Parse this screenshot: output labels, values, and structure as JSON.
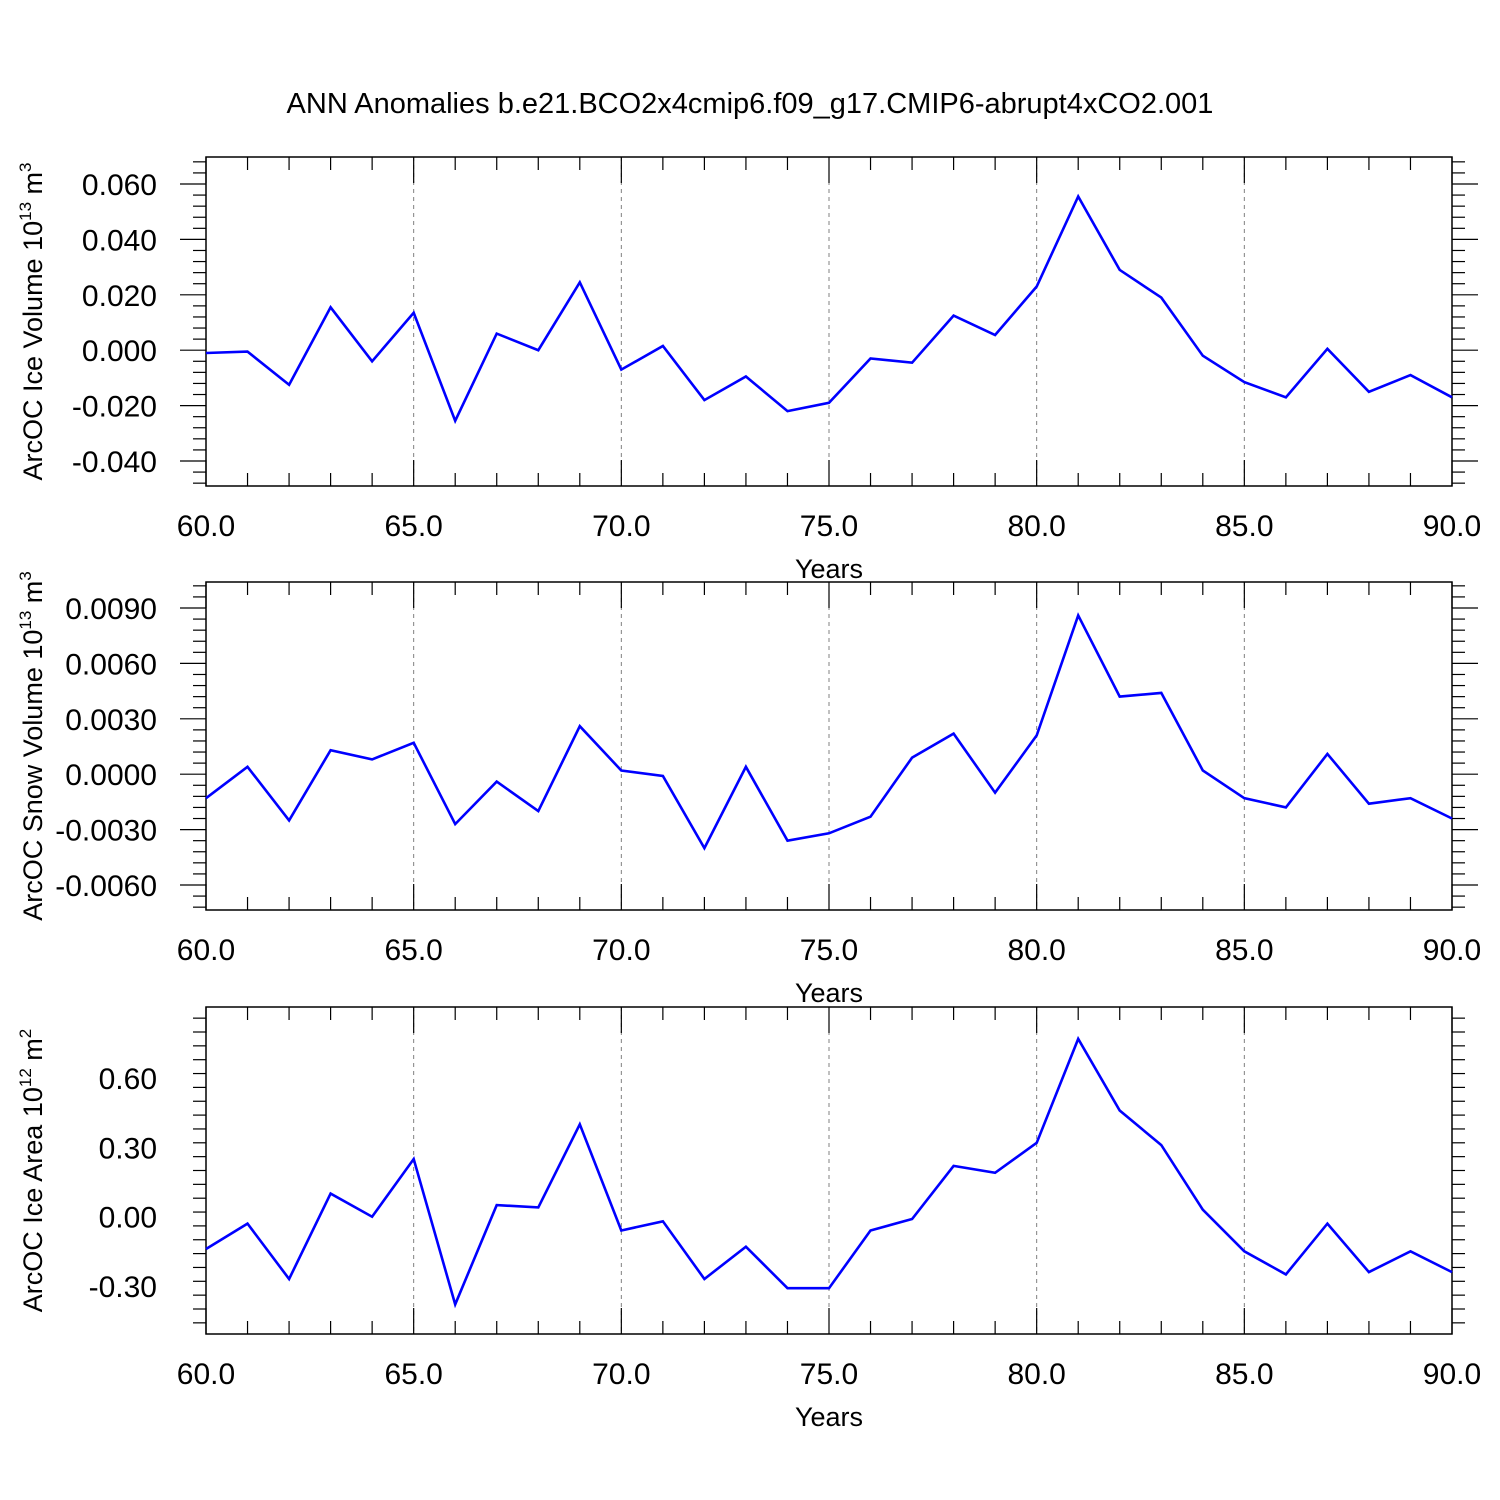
{
  "figure": {
    "title": "ANN Anomalies b.e21.BCO2x4cmip6.f09_g17.CMIP6-abrupt4xCO2.001"
  },
  "colors": {
    "line": "#0000ff",
    "axis": "#000000",
    "grid": "#808080"
  },
  "chart_data": [
    {
      "type": "line",
      "ylabel_main": "ArcOC Ice Volume 10",
      "ylabel_exp": "13",
      "ylabel_unit": "m",
      "ylabel_unit_exp": "3",
      "xlabel": "Years",
      "xlim": [
        60,
        90
      ],
      "ylim": [
        -0.04,
        0.06
      ],
      "y_decimals": 3,
      "x_ticks": [
        60,
        65,
        70,
        75,
        80,
        85,
        90
      ],
      "y_ticks": [
        -0.04,
        -0.02,
        0.0,
        0.02,
        0.04,
        0.06
      ],
      "grid_x": [
        65,
        70,
        75,
        80,
        85
      ],
      "x": [
        60,
        61,
        62,
        63,
        64,
        65,
        66,
        67,
        68,
        69,
        70,
        71,
        72,
        73,
        74,
        75,
        76,
        77,
        78,
        79,
        80,
        81,
        82,
        83,
        84,
        85,
        86,
        87,
        88,
        89,
        90
      ],
      "series": [
        {
          "values": [
            -0.001,
            -0.0005,
            -0.0125,
            0.0155,
            -0.004,
            0.0135,
            -0.0255,
            0.006,
            0.0,
            0.0245,
            -0.007,
            0.0015,
            -0.018,
            -0.0095,
            -0.022,
            -0.019,
            -0.003,
            -0.0045,
            0.0125,
            0.0055,
            0.023,
            0.0555,
            0.029,
            0.019,
            -0.002,
            -0.0115,
            -0.017,
            0.0005,
            -0.015,
            -0.009,
            -0.017
          ]
        }
      ]
    },
    {
      "type": "line",
      "ylabel_main": "ArcOC Snow Volume 10",
      "ylabel_exp": "13",
      "ylabel_unit": "m",
      "ylabel_unit_exp": "3",
      "xlabel": "Years",
      "xlim": [
        60,
        90
      ],
      "ylim": [
        -0.006,
        0.009
      ],
      "y_decimals": 4,
      "x_ticks": [
        60,
        65,
        70,
        75,
        80,
        85,
        90
      ],
      "y_ticks": [
        -0.006,
        -0.003,
        0.0,
        0.003,
        0.006,
        0.009
      ],
      "grid_x": [
        65,
        70,
        75,
        80,
        85
      ],
      "x": [
        60,
        61,
        62,
        63,
        64,
        65,
        66,
        67,
        68,
        69,
        70,
        71,
        72,
        73,
        74,
        75,
        76,
        77,
        78,
        79,
        80,
        81,
        82,
        83,
        84,
        85,
        86,
        87,
        88,
        89,
        90
      ],
      "series": [
        {
          "values": [
            -0.0013,
            0.0004,
            -0.0025,
            0.0013,
            0.0008,
            0.0017,
            -0.0027,
            -0.0004,
            -0.002,
            0.0026,
            0.0002,
            -0.0001,
            -0.004,
            0.0004,
            -0.0036,
            -0.0032,
            -0.0023,
            0.0009,
            0.0022,
            -0.001,
            0.0021,
            0.0086,
            0.0042,
            0.0044,
            0.0002,
            -0.0013,
            -0.0018,
            0.0011,
            -0.0016,
            -0.0013,
            -0.0024
          ]
        }
      ]
    },
    {
      "type": "line",
      "ylabel_main": "ArcOC Ice Area 10",
      "ylabel_exp": "12",
      "ylabel_unit": "m",
      "ylabel_unit_exp": "2",
      "xlabel": "Years",
      "xlim": [
        60,
        90
      ],
      "ylim": [
        -0.4,
        0.8
      ],
      "y_decimals": 2,
      "x_ticks": [
        60,
        65,
        70,
        75,
        80,
        85,
        90
      ],
      "y_ticks": [
        -0.3,
        0.0,
        0.3,
        0.6
      ],
      "grid_x": [
        65,
        70,
        75,
        80,
        85
      ],
      "x": [
        60,
        61,
        62,
        63,
        64,
        65,
        66,
        67,
        68,
        69,
        70,
        71,
        72,
        73,
        74,
        75,
        76,
        77,
        78,
        79,
        80,
        81,
        82,
        83,
        84,
        85,
        86,
        87,
        88,
        89,
        90
      ],
      "series": [
        {
          "values": [
            -0.14,
            -0.03,
            -0.27,
            0.1,
            0.0,
            0.25,
            -0.38,
            0.05,
            0.04,
            0.4,
            -0.06,
            -0.02,
            -0.27,
            -0.13,
            -0.31,
            -0.31,
            -0.06,
            -0.01,
            0.22,
            0.19,
            0.32,
            0.77,
            0.46,
            0.31,
            0.03,
            -0.15,
            -0.25,
            -0.03,
            -0.24,
            -0.15,
            -0.24
          ]
        }
      ]
    }
  ]
}
